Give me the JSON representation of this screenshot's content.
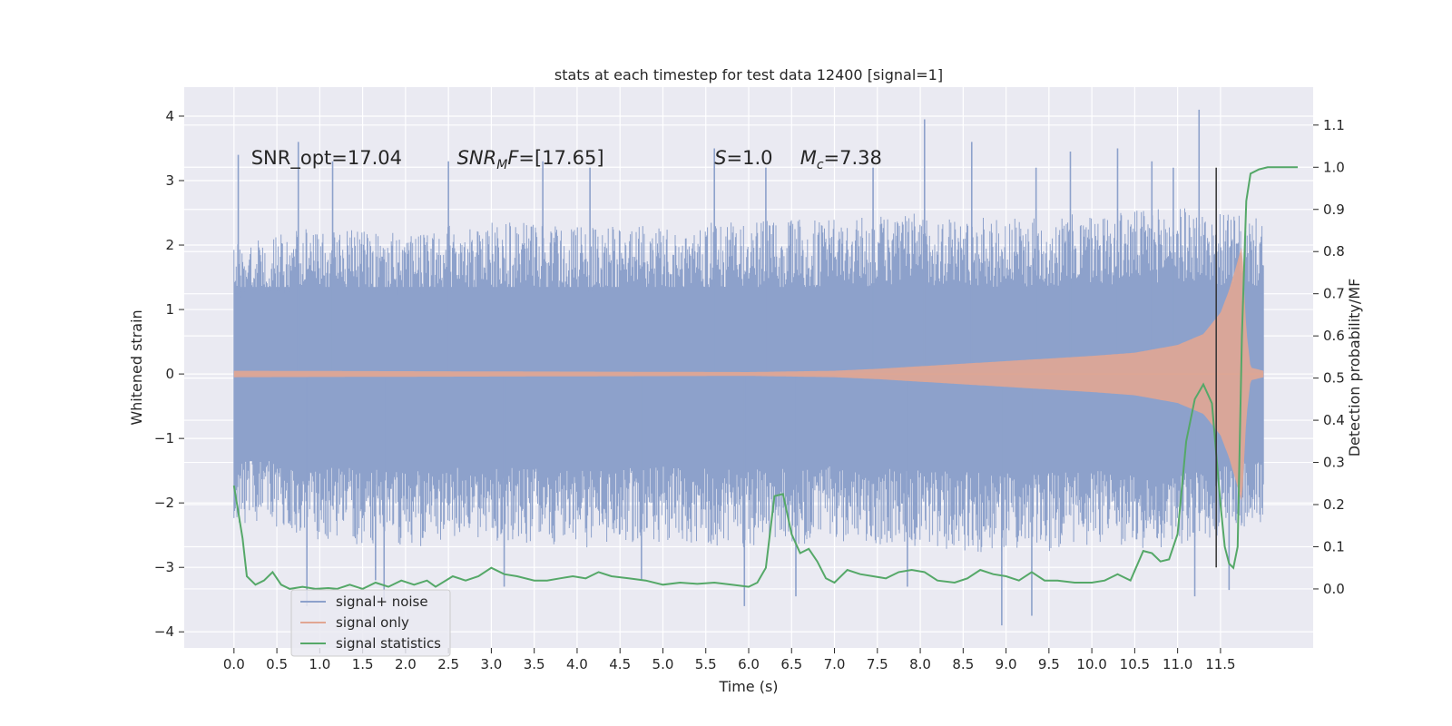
{
  "chart_data": {
    "type": "line",
    "title": "stats at each timestep for test data 12400 [signal=1]",
    "xlabel": "Time (s)",
    "ylabel": "Whitened strain",
    "y2label": "Detection probability/MF",
    "xlim": [
      -0.58,
      12.58
    ],
    "ylim": [
      -4.25,
      4.45
    ],
    "y2lim": [
      -0.14,
      1.19
    ],
    "xticks": [
      0.0,
      0.5,
      1.0,
      1.5,
      2.0,
      2.5,
      3.0,
      3.5,
      4.0,
      4.5,
      5.0,
      5.5,
      6.0,
      6.5,
      7.0,
      7.5,
      8.0,
      8.5,
      9.0,
      9.5,
      10.0,
      10.5,
      11.0,
      11.5
    ],
    "xtick_labels": [
      "0.0",
      "0.5",
      "1.0",
      "1.5",
      "2.0",
      "2.5",
      "3.0",
      "3.5",
      "4.0",
      "4.5",
      "5.0",
      "5.5",
      "6.0",
      "6.5",
      "7.0",
      "7.5",
      "8.0",
      "8.5",
      "9.0",
      "9.5",
      "10.0",
      "10.5",
      "11.0",
      "11.5"
    ],
    "yticks": [
      -4,
      -3,
      -2,
      -1,
      0,
      1,
      2,
      3,
      4
    ],
    "ytick_labels": [
      "−4",
      "−3",
      "−2",
      "−1",
      "0",
      "1",
      "2",
      "3",
      "4"
    ],
    "y2ticks": [
      0.0,
      0.1,
      0.2,
      0.3,
      0.4,
      0.5,
      0.6,
      0.7,
      0.8,
      0.9,
      1.0,
      1.1
    ],
    "y2tick_labels": [
      "0.0",
      "0.1",
      "0.2",
      "0.3",
      "0.4",
      "0.5",
      "0.6",
      "0.7",
      "0.8",
      "0.9",
      "1.0",
      "1.1"
    ],
    "grid": true,
    "legend_position": "lower-left",
    "annotations": [
      {
        "text": "SNR_opt=17.04",
        "x": 0.2,
        "y": 3.25
      },
      {
        "base": "SNR",
        "sub": "M",
        "rest": "F=[17.65]",
        "x": 2.6,
        "y": 3.25
      },
      {
        "base": "S",
        "sub": "",
        "rest": "=1.0",
        "x": 5.6,
        "y": 3.25
      },
      {
        "base": "M",
        "sub": "c",
        "rest": "=7.38",
        "x": 6.6,
        "y": 3.25
      }
    ],
    "vline": {
      "x": 11.45,
      "ymin": -3.0,
      "ymax": 3.2,
      "color": "#333333"
    },
    "series": [
      {
        "name": "signal+ noise",
        "axis": "left",
        "color": "#8da1cb",
        "t_start": 0.0,
        "t_end": 12.0,
        "envelope": [
          {
            "x": 0.0,
            "upper": 2.0,
            "lower": -2.3
          },
          {
            "x": 1.0,
            "upper": 2.3,
            "lower": -2.6
          },
          {
            "x": 2.0,
            "upper": 2.2,
            "lower": -2.7
          },
          {
            "x": 3.0,
            "upper": 2.4,
            "lower": -2.6
          },
          {
            "x": 4.0,
            "upper": 2.3,
            "lower": -2.7
          },
          {
            "x": 5.0,
            "upper": 2.3,
            "lower": -2.6
          },
          {
            "x": 6.0,
            "upper": 2.4,
            "lower": -2.7
          },
          {
            "x": 7.0,
            "upper": 2.4,
            "lower": -2.6
          },
          {
            "x": 8.0,
            "upper": 2.5,
            "lower": -2.7
          },
          {
            "x": 9.0,
            "upper": 2.4,
            "lower": -2.8
          },
          {
            "x": 10.0,
            "upper": 2.5,
            "lower": -2.7
          },
          {
            "x": 11.0,
            "upper": 2.6,
            "lower": -2.7
          },
          {
            "x": 12.0,
            "upper": 2.4,
            "lower": -2.3
          }
        ],
        "spikes": [
          {
            "x": 0.05,
            "y": 3.4
          },
          {
            "x": 0.75,
            "y": 3.6
          },
          {
            "x": 0.85,
            "y": -3.6
          },
          {
            "x": 1.15,
            "y": 3.3
          },
          {
            "x": 1.65,
            "y": -3.2
          },
          {
            "x": 1.75,
            "y": -3.5
          },
          {
            "x": 2.5,
            "y": 3.3
          },
          {
            "x": 3.15,
            "y": -3.3
          },
          {
            "x": 3.6,
            "y": 3.3
          },
          {
            "x": 4.15,
            "y": 3.2
          },
          {
            "x": 4.75,
            "y": -3.2
          },
          {
            "x": 5.6,
            "y": 3.5
          },
          {
            "x": 5.95,
            "y": -3.6
          },
          {
            "x": 6.2,
            "y": 3.2
          },
          {
            "x": 6.55,
            "y": -3.45
          },
          {
            "x": 7.45,
            "y": 3.2
          },
          {
            "x": 7.85,
            "y": -3.3
          },
          {
            "x": 8.05,
            "y": 3.95
          },
          {
            "x": 8.6,
            "y": 3.6
          },
          {
            "x": 8.95,
            "y": -3.9
          },
          {
            "x": 9.3,
            "y": -3.75
          },
          {
            "x": 9.35,
            "y": 3.2
          },
          {
            "x": 9.75,
            "y": 3.45
          },
          {
            "x": 10.3,
            "y": 3.5
          },
          {
            "x": 10.7,
            "y": 3.3
          },
          {
            "x": 10.95,
            "y": 3.2
          },
          {
            "x": 11.2,
            "y": -3.45
          },
          {
            "x": 11.25,
            "y": 4.1
          },
          {
            "x": 11.6,
            "y": -3.35
          }
        ]
      },
      {
        "name": "signal only",
        "axis": "left",
        "color": "#e1a693",
        "t_start": 0.0,
        "t_end": 12.0,
        "envelope": [
          {
            "x": 0.0,
            "amp": 0.05
          },
          {
            "x": 6.0,
            "amp": 0.03
          },
          {
            "x": 7.0,
            "amp": 0.05
          },
          {
            "x": 7.5,
            "amp": 0.08
          },
          {
            "x": 8.0,
            "amp": 0.12
          },
          {
            "x": 8.5,
            "amp": 0.16
          },
          {
            "x": 9.0,
            "amp": 0.2
          },
          {
            "x": 9.5,
            "amp": 0.24
          },
          {
            "x": 10.0,
            "amp": 0.28
          },
          {
            "x": 10.5,
            "amp": 0.33
          },
          {
            "x": 11.0,
            "amp": 0.45
          },
          {
            "x": 11.3,
            "amp": 0.62
          },
          {
            "x": 11.5,
            "amp": 0.95
          },
          {
            "x": 11.6,
            "amp": 1.3
          },
          {
            "x": 11.7,
            "amp": 1.75
          },
          {
            "x": 11.75,
            "amp": 2.0
          },
          {
            "x": 11.8,
            "amp": 0.7
          },
          {
            "x": 11.85,
            "amp": 0.1
          },
          {
            "x": 12.0,
            "amp": 0.05
          }
        ]
      },
      {
        "name": "signal statistics",
        "axis": "right",
        "color": "#55a868",
        "points": [
          [
            0.0,
            0.245
          ],
          [
            0.1,
            0.12
          ],
          [
            0.15,
            0.03
          ],
          [
            0.25,
            0.01
          ],
          [
            0.35,
            0.02
          ],
          [
            0.45,
            0.04
          ],
          [
            0.55,
            0.01
          ],
          [
            0.65,
            0.0
          ],
          [
            0.8,
            0.005
          ],
          [
            0.95,
            0.0
          ],
          [
            1.1,
            0.002
          ],
          [
            1.2,
            0.0
          ],
          [
            1.35,
            0.01
          ],
          [
            1.5,
            0.0
          ],
          [
            1.65,
            0.015
          ],
          [
            1.8,
            0.005
          ],
          [
            1.95,
            0.02
          ],
          [
            2.1,
            0.01
          ],
          [
            2.25,
            0.02
          ],
          [
            2.35,
            0.005
          ],
          [
            2.55,
            0.03
          ],
          [
            2.7,
            0.02
          ],
          [
            2.85,
            0.03
          ],
          [
            3.0,
            0.05
          ],
          [
            3.15,
            0.035
          ],
          [
            3.3,
            0.03
          ],
          [
            3.5,
            0.02
          ],
          [
            3.65,
            0.02
          ],
          [
            3.8,
            0.025
          ],
          [
            3.95,
            0.03
          ],
          [
            4.1,
            0.025
          ],
          [
            4.25,
            0.04
          ],
          [
            4.4,
            0.03
          ],
          [
            4.6,
            0.025
          ],
          [
            4.8,
            0.02
          ],
          [
            5.0,
            0.01
          ],
          [
            5.2,
            0.015
          ],
          [
            5.4,
            0.012
          ],
          [
            5.6,
            0.015
          ],
          [
            5.8,
            0.01
          ],
          [
            6.0,
            0.005
          ],
          [
            6.1,
            0.015
          ],
          [
            6.2,
            0.05
          ],
          [
            6.3,
            0.22
          ],
          [
            6.4,
            0.225
          ],
          [
            6.5,
            0.13
          ],
          [
            6.6,
            0.085
          ],
          [
            6.7,
            0.095
          ],
          [
            6.8,
            0.065
          ],
          [
            6.9,
            0.025
          ],
          [
            7.0,
            0.015
          ],
          [
            7.15,
            0.045
          ],
          [
            7.3,
            0.035
          ],
          [
            7.45,
            0.03
          ],
          [
            7.6,
            0.025
          ],
          [
            7.75,
            0.04
          ],
          [
            7.9,
            0.045
          ],
          [
            8.05,
            0.04
          ],
          [
            8.2,
            0.02
          ],
          [
            8.4,
            0.015
          ],
          [
            8.55,
            0.025
          ],
          [
            8.7,
            0.045
          ],
          [
            8.85,
            0.035
          ],
          [
            9.0,
            0.03
          ],
          [
            9.15,
            0.02
          ],
          [
            9.3,
            0.04
          ],
          [
            9.45,
            0.02
          ],
          [
            9.6,
            0.02
          ],
          [
            9.8,
            0.015
          ],
          [
            10.0,
            0.015
          ],
          [
            10.15,
            0.02
          ],
          [
            10.3,
            0.035
          ],
          [
            10.45,
            0.02
          ],
          [
            10.6,
            0.09
          ],
          [
            10.7,
            0.085
          ],
          [
            10.8,
            0.065
          ],
          [
            10.9,
            0.07
          ],
          [
            11.0,
            0.13
          ],
          [
            11.1,
            0.35
          ],
          [
            11.2,
            0.45
          ],
          [
            11.3,
            0.485
          ],
          [
            11.4,
            0.44
          ],
          [
            11.5,
            0.2
          ],
          [
            11.55,
            0.1
          ],
          [
            11.6,
            0.06
          ],
          [
            11.65,
            0.05
          ],
          [
            11.7,
            0.1
          ],
          [
            11.75,
            0.6
          ],
          [
            11.8,
            0.92
          ],
          [
            11.85,
            0.985
          ],
          [
            11.95,
            0.995
          ],
          [
            12.05,
            1.0
          ],
          [
            12.4,
            1.0
          ]
        ]
      }
    ]
  }
}
